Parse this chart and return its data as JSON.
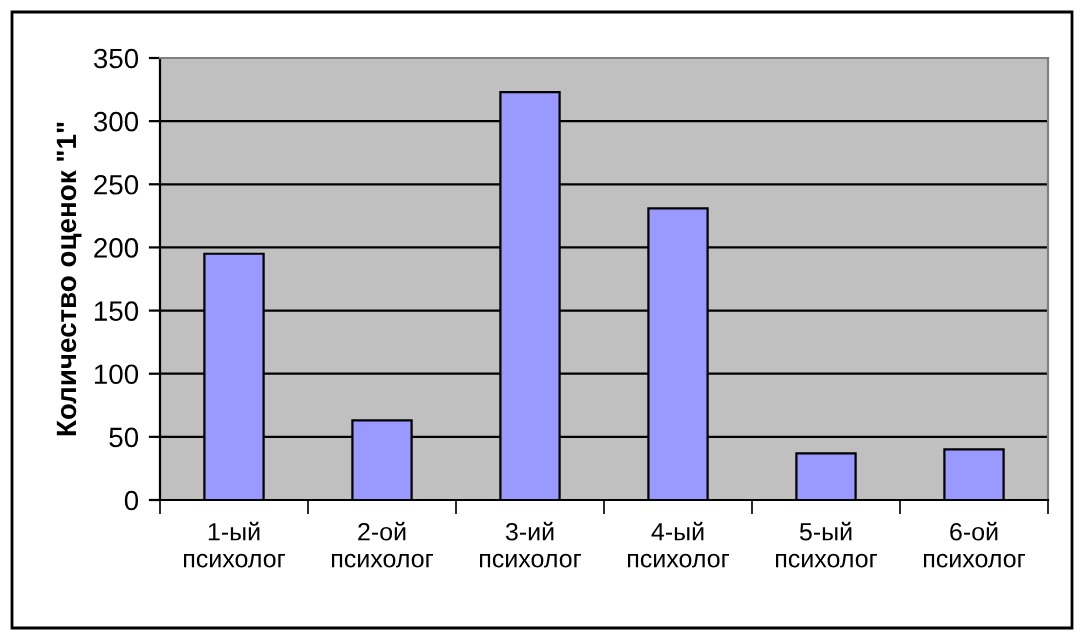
{
  "chart_data": {
    "type": "bar",
    "ylabel": "Количество оценок \"1\"",
    "categories": [
      "1-ый\nпсихолог",
      "2-ой\nпсихолог",
      "3-ий\nпсихолог",
      "4-ый\nпсихолог",
      "5-ый\nпсихолог",
      "6-ой\nпсихолог"
    ],
    "values": [
      195,
      63,
      323,
      231,
      37,
      40
    ],
    "color": "#9999ff",
    "ylim": [
      0,
      350
    ],
    "yticks": [
      0,
      50,
      100,
      150,
      200,
      250,
      300,
      350
    ],
    "grid": "y",
    "legend": false
  }
}
